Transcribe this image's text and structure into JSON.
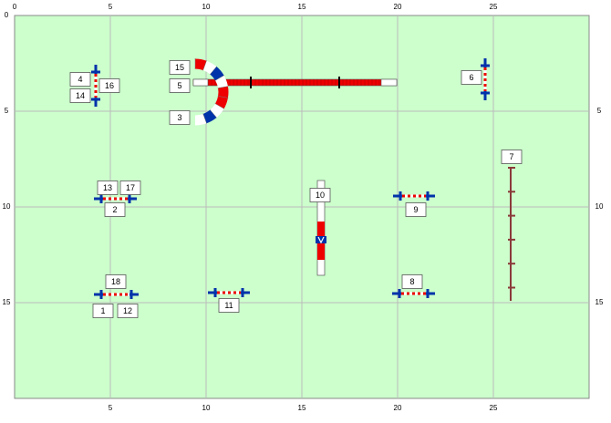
{
  "axes": {
    "xticks": [
      0,
      5,
      10,
      15,
      20,
      25
    ],
    "yticks": [
      0,
      5,
      10,
      15
    ]
  },
  "labels": [
    "1",
    "2",
    "3",
    "4",
    "5",
    "6",
    "7",
    "8",
    "9",
    "10",
    "11",
    "12",
    "13",
    "14",
    "15",
    "16",
    "17",
    "18"
  ]
}
